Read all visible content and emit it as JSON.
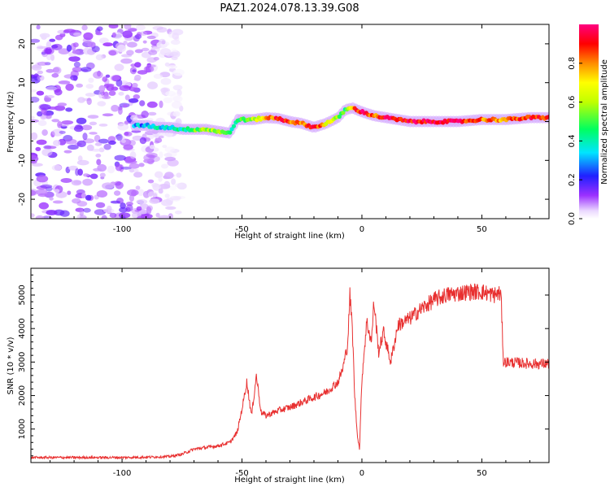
{
  "title": "PAZ1.2024.078.13.39.G08",
  "colors": {
    "line": "#e83030",
    "axes": "#000000",
    "background": "#ffffff"
  },
  "chart_data": [
    {
      "type": "heatmap",
      "xlabel": "Height of straight line (km)",
      "ylabel": "Frequency (Hz)",
      "xlim": [
        -138,
        78
      ],
      "ylim": [
        -25,
        25
      ],
      "xticks": [
        -100,
        -50,
        0,
        50
      ],
      "yticks": [
        -20,
        -10,
        0,
        10,
        20
      ],
      "colorbar": {
        "label": "Normalized spectral amplitude",
        "range": [
          0,
          1
        ],
        "ticks": [
          0.0,
          0.2,
          0.4,
          0.6,
          0.8
        ],
        "colormap": "white-purple-blue-cyan-green-yellow-red-magenta"
      },
      "ridge_frequency": [
        [
          -90,
          -1.0
        ],
        [
          -85,
          -1.5
        ],
        [
          -80,
          -1.5
        ],
        [
          -75,
          -2.0
        ],
        [
          -70,
          -2.0
        ],
        [
          -65,
          -2.0
        ],
        [
          -60,
          -2.5
        ],
        [
          -55,
          -3.0
        ],
        [
          -52,
          0.5
        ],
        [
          -45,
          0.5
        ],
        [
          -40,
          1.0
        ],
        [
          -35,
          0.8
        ],
        [
          -30,
          0.0
        ],
        [
          -25,
          -0.5
        ],
        [
          -20,
          -1.5
        ],
        [
          -15,
          -0.5
        ],
        [
          -10,
          1.0
        ],
        [
          -7,
          3.0
        ],
        [
          -4,
          3.5
        ],
        [
          0,
          2.5
        ],
        [
          5,
          1.5
        ],
        [
          10,
          1.0
        ],
        [
          20,
          0.0
        ],
        [
          30,
          0.0
        ],
        [
          40,
          0.0
        ],
        [
          50,
          0.5
        ],
        [
          60,
          0.5
        ],
        [
          70,
          1.0
        ],
        [
          78,
          1.0
        ]
      ],
      "ridge_amplitude": [
        [
          -90,
          0.3
        ],
        [
          -85,
          0.35
        ],
        [
          -80,
          0.35
        ],
        [
          -75,
          0.4
        ],
        [
          -70,
          0.5
        ],
        [
          -65,
          0.6
        ],
        [
          -60,
          0.55
        ],
        [
          -55,
          0.4
        ],
        [
          -52,
          0.45
        ],
        [
          -45,
          0.6
        ],
        [
          -40,
          0.75
        ],
        [
          -35,
          0.9
        ],
        [
          -30,
          0.85
        ],
        [
          -25,
          0.75
        ],
        [
          -20,
          0.95
        ],
        [
          -15,
          0.7
        ],
        [
          -10,
          0.55
        ],
        [
          -7,
          0.5
        ],
        [
          -4,
          0.8
        ],
        [
          0,
          0.95
        ],
        [
          5,
          0.8
        ],
        [
          10,
          0.95
        ],
        [
          20,
          0.9
        ],
        [
          30,
          0.95
        ],
        [
          40,
          0.95
        ],
        [
          50,
          0.8
        ],
        [
          60,
          0.8
        ],
        [
          70,
          0.9
        ],
        [
          78,
          0.9
        ]
      ],
      "noise_region_x": [
        -138,
        -75
      ]
    },
    {
      "type": "line",
      "xlabel": "Height of straight line (km)",
      "ylabel": "SNR (10 * v/v)",
      "xlim": [
        -138,
        78
      ],
      "ylim": [
        0,
        5800
      ],
      "xticks": [
        -100,
        -50,
        0,
        50
      ],
      "yticks": [
        1000,
        2000,
        3000,
        4000,
        5000
      ],
      "series": [
        {
          "color": "#e83030",
          "x": [
            -138,
            -120,
            -100,
            -90,
            -80,
            -75,
            -70,
            -65,
            -60,
            -55,
            -52,
            -50,
            -48,
            -46,
            -44,
            -42,
            -40,
            -35,
            -30,
            -25,
            -20,
            -15,
            -10,
            -8,
            -6,
            -5,
            -4,
            -3,
            -2,
            -1,
            0,
            2,
            4,
            5,
            7,
            9,
            12,
            15,
            20,
            25,
            30,
            35,
            40,
            45,
            50,
            55,
            57,
            58,
            59,
            60,
            65,
            70,
            78
          ],
          "y": [
            150,
            150,
            150,
            160,
            180,
            250,
            400,
            450,
            500,
            600,
            900,
            1600,
            2400,
            1400,
            2600,
            1500,
            1400,
            1550,
            1650,
            1800,
            1950,
            2100,
            2400,
            2800,
            3500,
            5000,
            4000,
            2000,
            900,
            400,
            2500,
            4200,
            3600,
            4800,
            3300,
            3900,
            3000,
            4100,
            4300,
            4600,
            4850,
            5000,
            5050,
            5100,
            5100,
            5000,
            5050,
            5000,
            3000,
            3000,
            2980,
            2950,
            2950
          ]
        }
      ]
    }
  ]
}
